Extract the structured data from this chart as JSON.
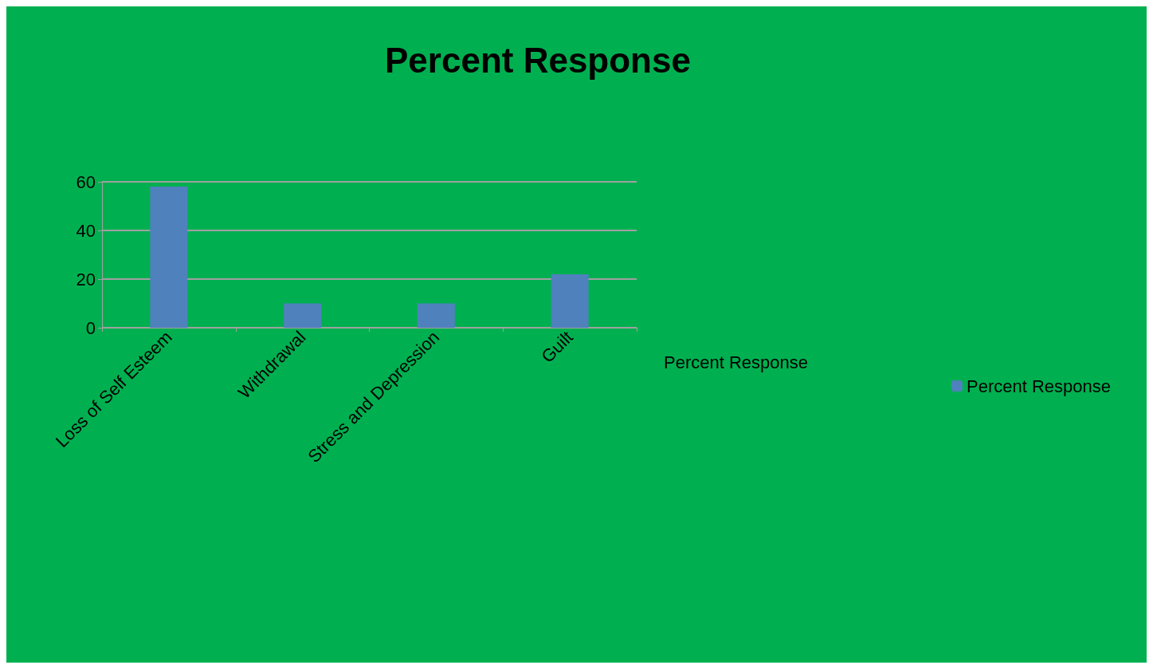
{
  "chart_data": {
    "type": "bar",
    "title": "Percent Response",
    "categories": [
      "Loss of Self Esteem",
      "Withdrawal",
      "Stress and Depression",
      "Guilt"
    ],
    "series": [
      {
        "name": "Percent Response",
        "color": "#4f81bd",
        "values": [
          58,
          10,
          10,
          22
        ]
      }
    ],
    "ylim": [
      0,
      60
    ],
    "yticks": [
      0,
      20,
      40,
      60
    ],
    "grid": "y",
    "legend": "right",
    "annotations": [
      "Percent Response"
    ]
  }
}
